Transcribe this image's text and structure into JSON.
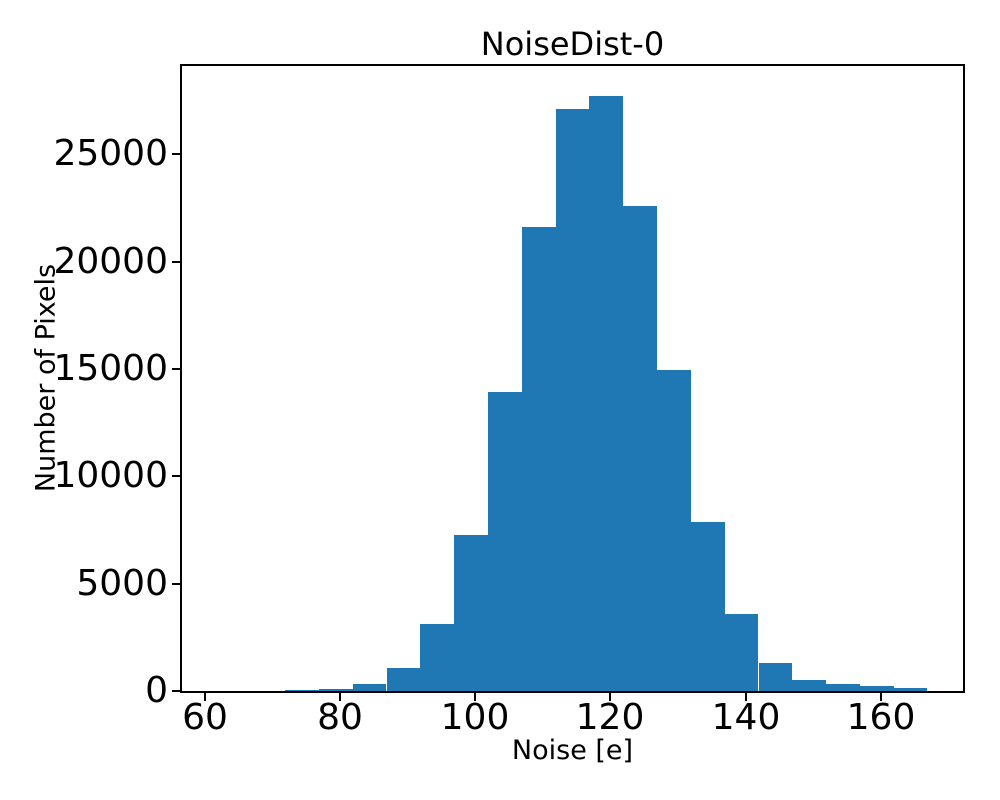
{
  "chart_data": {
    "type": "bar",
    "subtype": "histogram",
    "title": "NoiseDist-0",
    "xlabel": "Noise [e]",
    "ylabel": "Number of Pixels",
    "bar_color": "#1f77b4",
    "bin_start": 61.9,
    "bin_width": 5.0,
    "bin_edges": [
      61.9,
      66.9,
      71.9,
      76.9,
      81.9,
      86.9,
      91.9,
      96.9,
      101.9,
      106.9,
      111.9,
      116.9,
      121.9,
      126.9,
      131.9,
      136.9,
      141.9,
      146.9,
      151.9,
      156.9,
      161.9,
      166.9
    ],
    "counts": [
      2,
      15,
      50,
      110,
      310,
      1090,
      3100,
      7280,
      13910,
      21590,
      27130,
      27720,
      22580,
      14930,
      7870,
      3590,
      1290,
      510,
      310,
      220,
      155
    ],
    "x_ticks": [
      "60",
      "80",
      "100",
      "120",
      "140",
      "160"
    ],
    "x_tick_values": [
      60,
      80,
      100,
      120,
      140,
      160
    ],
    "y_ticks": [
      "0",
      "5000",
      "10000",
      "15000",
      "20000",
      "25000"
    ],
    "y_tick_values": [
      0,
      5000,
      10000,
      15000,
      20000,
      25000
    ],
    "xlim": [
      56.65,
      172.15
    ],
    "ylim": [
      0,
      29110
    ],
    "grid": false,
    "legend": null,
    "axis_color": "#000000",
    "background_color": "#ffffff"
  }
}
